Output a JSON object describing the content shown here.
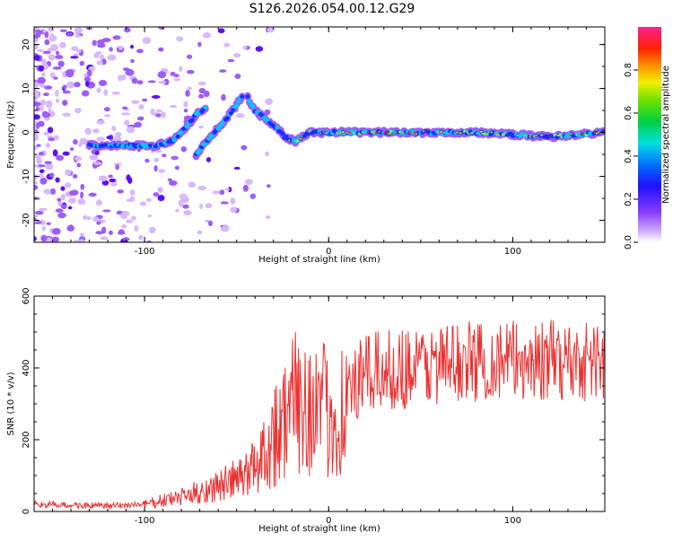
{
  "title": "S126.2026.054.00.12.G29",
  "chart_data": [
    {
      "type": "heatmap",
      "xlabel": "Height of straight line (km)",
      "ylabel": "Frequency (Hz)",
      "xlim": [
        -160,
        150
      ],
      "ylim": [
        -25,
        24
      ],
      "xticks": [
        -100,
        0,
        100
      ],
      "yticks": [
        -20,
        -10,
        0,
        10,
        20
      ],
      "colorbar": {
        "label": "Normalized spectral amplitude",
        "range": [
          0,
          1
        ],
        "ticks": [
          0.0,
          0.2,
          0.4,
          0.6,
          0.8
        ],
        "tick_labels": [
          "0.0",
          "0.2",
          "0.4",
          "0.6",
          "0.8"
        ]
      },
      "ridge": {
        "description_points_km_hz": [
          [
            -120,
            -3
          ],
          [
            -100,
            -3
          ],
          [
            -85,
            -2
          ],
          [
            -75,
            2
          ],
          [
            -68,
            5
          ],
          [
            -70,
            -5
          ],
          [
            -60,
            1
          ],
          [
            -50,
            5
          ],
          [
            -45,
            9
          ],
          [
            -40,
            4
          ],
          [
            -30,
            2
          ],
          [
            -25,
            -1
          ],
          [
            -18,
            -2
          ],
          [
            0,
            0
          ],
          [
            50,
            0
          ],
          [
            100,
            -1
          ],
          [
            150,
            0
          ]
        ]
      }
    },
    {
      "type": "line",
      "xlabel": "Height of straight line (km)",
      "ylabel": "SNR (10 * v/v)",
      "xlim": [
        -160,
        150
      ],
      "ylim": [
        0,
        600
      ],
      "xticks": [
        -100,
        0,
        100
      ],
      "yticks": [
        0,
        200,
        400,
        600
      ],
      "color": "#ee3030",
      "trend_km_snr": [
        [
          -160,
          20
        ],
        [
          -120,
          15
        ],
        [
          -100,
          20
        ],
        [
          -80,
          40
        ],
        [
          -60,
          70
        ],
        [
          -45,
          100
        ],
        [
          -35,
          170
        ],
        [
          -25,
          250
        ],
        [
          -15,
          320
        ],
        [
          -5,
          280
        ],
        [
          0,
          270
        ],
        [
          5,
          260
        ],
        [
          10,
          320
        ],
        [
          20,
          380
        ],
        [
          40,
          400
        ],
        [
          80,
          420
        ],
        [
          150,
          420
        ]
      ]
    }
  ]
}
